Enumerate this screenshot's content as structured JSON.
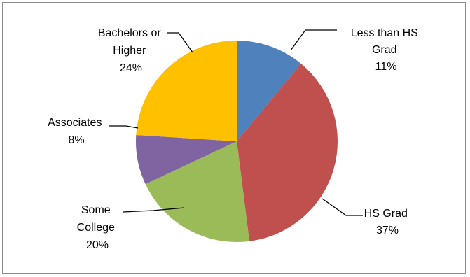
{
  "chart_data": {
    "type": "pie",
    "title": "",
    "slices": [
      {
        "name": "Less than HS Grad",
        "label_lines": [
          "Less than HS",
          "Grad"
        ],
        "percent_label": "11%",
        "value": 11,
        "color": "#4F81BD"
      },
      {
        "name": "HS Grad",
        "label_lines": [
          "HS Grad"
        ],
        "percent_label": "37%",
        "value": 37,
        "color": "#C0504D"
      },
      {
        "name": "Some College",
        "label_lines": [
          "Some",
          "College"
        ],
        "percent_label": "20%",
        "value": 20,
        "color": "#9BBB59"
      },
      {
        "name": "Associates",
        "label_lines": [
          "Associates"
        ],
        "percent_label": "8%",
        "value": 8,
        "color": "#8064A2"
      },
      {
        "name": "Bachelors or Higher",
        "label_lines": [
          "Bachelors or",
          "Higher"
        ],
        "percent_label": "24%",
        "value": 24,
        "color": "#FFC000"
      }
    ],
    "start_angle_deg": 0,
    "direction": "clockwise",
    "legend": "none",
    "data_labels": "outside with leader lines"
  }
}
